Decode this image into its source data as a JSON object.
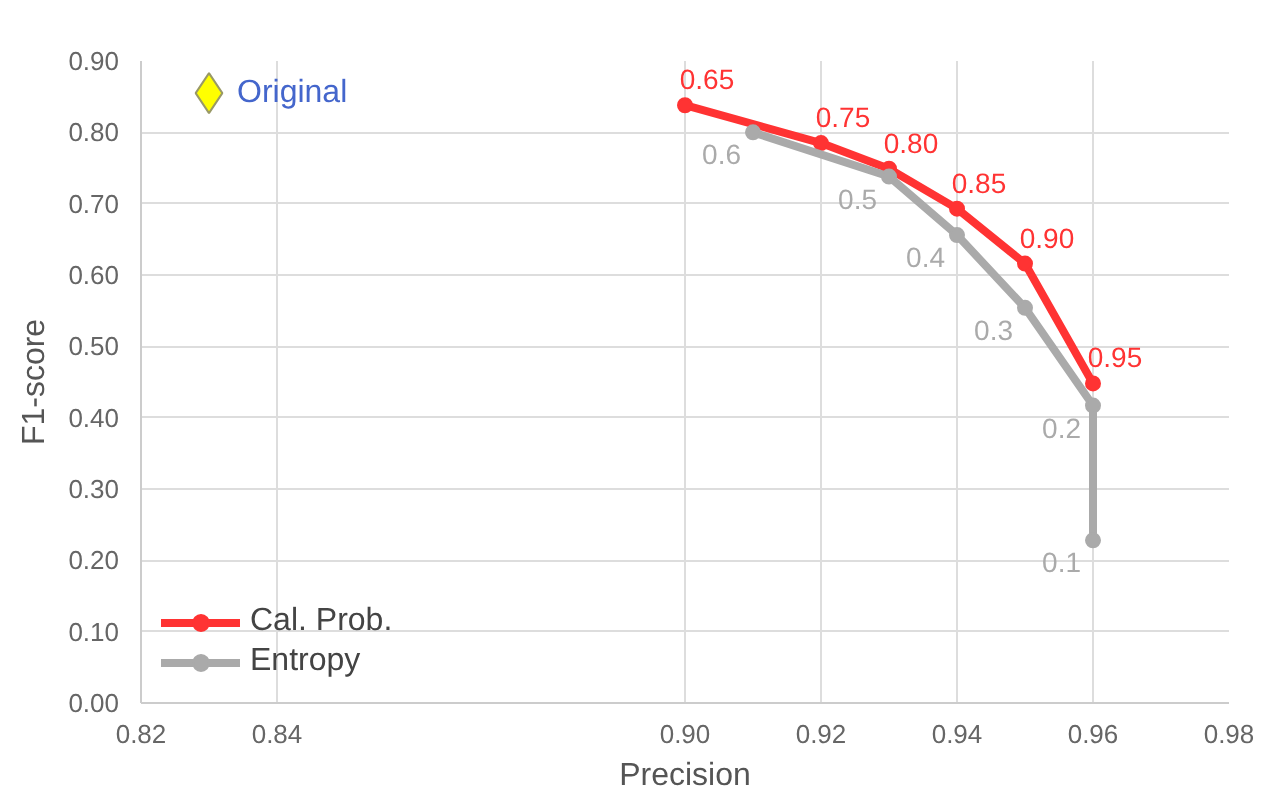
{
  "chart_data": {
    "type": "line",
    "xlabel": "Precision",
    "ylabel": "F1-score",
    "xlim": [
      0.82,
      0.98
    ],
    "ylim": [
      0,
      0.9
    ],
    "xticks": [
      {
        "value": 0.82,
        "label": "0.82"
      },
      {
        "value": 0.84,
        "label": "0.84"
      },
      {
        "value": 0.9,
        "label": "0.90"
      },
      {
        "value": 0.92,
        "label": "0.92"
      },
      {
        "value": 0.94,
        "label": "0.94"
      },
      {
        "value": 0.96,
        "label": "0.96"
      },
      {
        "value": 0.98,
        "label": "0.98"
      }
    ],
    "yticks": [
      {
        "value": 0,
        "label": "0.00"
      },
      {
        "value": 0.1,
        "label": "0.10"
      },
      {
        "value": 0.2,
        "label": "0.20"
      },
      {
        "value": 0.3,
        "label": "0.30"
      },
      {
        "value": 0.4,
        "label": "0.40"
      },
      {
        "value": 0.5,
        "label": "0.50"
      },
      {
        "value": 0.6,
        "label": "0.60"
      },
      {
        "value": 0.7,
        "label": "0.70"
      },
      {
        "value": 0.8,
        "label": "0.80"
      },
      {
        "value": 0.9,
        "label": "0.90"
      }
    ],
    "grid": true,
    "legend": "bottom left",
    "marker": "circle",
    "line_style": "solid",
    "series": [
      {
        "name": "Cal. Prob.",
        "color": "#ff3333",
        "x": [
          0.9,
          0.92,
          0.93,
          0.94,
          0.95,
          0.96
        ],
        "values": [
          0.838,
          0.785,
          0.749,
          0.693,
          0.616,
          0.448
        ]
      },
      {
        "name": "Entropy",
        "color": "#aaaaaa",
        "x": [
          0.91,
          0.93,
          0.94,
          0.95,
          0.96,
          0.96
        ],
        "values": [
          0.8,
          0.738,
          0.656,
          0.554,
          0.417,
          0.228
        ]
      },
      {
        "name": "Original",
        "type": "scatter",
        "marker": "diamond",
        "color": "#ffff00",
        "x": [
          0.83
        ],
        "values": [
          0.855
        ]
      }
    ],
    "annotations": [
      {
        "text": "0.65",
        "x": 0.9,
        "y": 0.838
      },
      {
        "text": "0.75",
        "x": 0.92,
        "y": 0.785
      },
      {
        "text": "0.80",
        "x": 0.93,
        "y": 0.749
      },
      {
        "text": "0.85",
        "x": 0.94,
        "y": 0.693
      },
      {
        "text": "0.90",
        "x": 0.95,
        "y": 0.616
      },
      {
        "text": "0.95",
        "x": 0.96,
        "y": 0.448
      },
      {
        "text": "0.6",
        "x": 0.91,
        "y": 0.8
      },
      {
        "text": "0.5",
        "x": 0.93,
        "y": 0.738
      },
      {
        "text": "0.4",
        "x": 0.94,
        "y": 0.656
      },
      {
        "text": "0.3",
        "x": 0.95,
        "y": 0.554
      },
      {
        "text": "0.2",
        "x": 0.96,
        "y": 0.417
      },
      {
        "text": "0.1",
        "x": 0.96,
        "y": 0.228
      }
    ]
  }
}
